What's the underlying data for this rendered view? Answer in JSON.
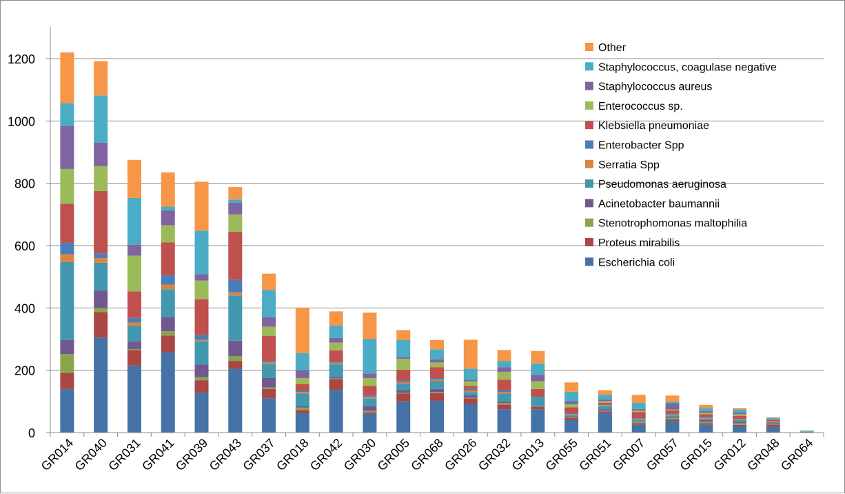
{
  "chart_data": {
    "type": "bar",
    "stacked": true,
    "categories": [
      "GR014",
      "GR040",
      "GR031",
      "GR041",
      "GR039",
      "GR043",
      "GR037",
      "GR018",
      "GR042",
      "GR030",
      "GR005",
      "GR068",
      "GR026",
      "GR032",
      "GR013",
      "GR055",
      "GR051",
      "GR007",
      "GR057",
      "GR015",
      "GR012",
      "GR048",
      "GR064"
    ],
    "ylim": [
      0,
      1300
    ],
    "yticks": [
      0,
      200,
      400,
      600,
      800,
      1000,
      1200
    ],
    "grid": true,
    "legend_position": "top-right",
    "series": [
      {
        "name": "Escherichia coli",
        "color": "#4572A7",
        "values": [
          140,
          305,
          215,
          258,
          128,
          205,
          110,
          62,
          137,
          60,
          100,
          102,
          92,
          75,
          75,
          40,
          63,
          25,
          37,
          25,
          20,
          18,
          3
        ]
      },
      {
        "name": "Proteus mirabilis",
        "color": "#AA4643",
        "values": [
          52,
          82,
          50,
          53,
          40,
          25,
          30,
          10,
          35,
          5,
          25,
          25,
          18,
          15,
          8,
          8,
          5,
          5,
          5,
          5,
          5,
          8,
          0
        ]
      },
      {
        "name": "Stenotrophomonas maltophilia",
        "color": "#89A54E",
        "values": [
          60,
          13,
          3,
          14,
          10,
          15,
          5,
          8,
          2,
          5,
          2,
          3,
          2,
          5,
          2,
          2,
          2,
          5,
          5,
          5,
          5,
          3,
          1
        ]
      },
      {
        "name": "Acinetobacter baumannii",
        "color": "#71588F",
        "values": [
          45,
          55,
          25,
          45,
          40,
          50,
          30,
          5,
          5,
          15,
          10,
          10,
          8,
          5,
          0,
          2,
          5,
          2,
          3,
          5,
          5,
          3,
          0
        ]
      },
      {
        "name": "Pseudomonas aeruginosa",
        "color": "#4198AF",
        "values": [
          250,
          90,
          50,
          90,
          75,
          145,
          45,
          40,
          40,
          25,
          20,
          25,
          10,
          25,
          30,
          5,
          10,
          5,
          5,
          5,
          5,
          2,
          1
        ]
      },
      {
        "name": "Serratia Spp",
        "color": "#DB843D",
        "values": [
          25,
          15,
          10,
          15,
          5,
          10,
          5,
          5,
          5,
          5,
          5,
          5,
          5,
          5,
          0,
          2,
          3,
          2,
          3,
          2,
          2,
          1,
          0
        ]
      },
      {
        "name": "Enterobacter Spp",
        "color": "#4A7EBB",
        "values": [
          37,
          15,
          15,
          30,
          15,
          40,
          5,
          5,
          5,
          5,
          5,
          5,
          5,
          5,
          0,
          2,
          3,
          2,
          3,
          2,
          2,
          1,
          0
        ]
      },
      {
        "name": "Klebsiella pneumoniae",
        "color": "#C0504D",
        "values": [
          125,
          200,
          85,
          105,
          115,
          155,
          80,
          20,
          35,
          30,
          35,
          35,
          10,
          35,
          25,
          20,
          5,
          20,
          10,
          10,
          10,
          5,
          0
        ]
      },
      {
        "name": "Enterococcus sp.",
        "color": "#9BBB59",
        "values": [
          112,
          80,
          115,
          55,
          60,
          55,
          30,
          20,
          25,
          25,
          35,
          15,
          15,
          25,
          25,
          10,
          5,
          5,
          3,
          5,
          5,
          2,
          1
        ]
      },
      {
        "name": "Staphylococcus aureus",
        "color": "#8064A2",
        "values": [
          138,
          75,
          35,
          48,
          20,
          38,
          30,
          25,
          15,
          15,
          5,
          10,
          5,
          15,
          20,
          10,
          5,
          5,
          20,
          5,
          5,
          2,
          0
        ]
      },
      {
        "name": "Staphylococcus, coagulase negative",
        "color": "#4BACC6",
        "values": [
          73,
          152,
          150,
          12,
          140,
          10,
          88,
          55,
          40,
          110,
          55,
          32,
          35,
          20,
          37,
          30,
          15,
          20,
          5,
          10,
          10,
          3,
          1
        ]
      },
      {
        "name": "Other",
        "color": "#F79646",
        "values": [
          163,
          110,
          122,
          110,
          157,
          40,
          52,
          146,
          45,
          85,
          32,
          30,
          93,
          35,
          40,
          30,
          15,
          25,
          20,
          10,
          5,
          1,
          0
        ]
      }
    ]
  }
}
